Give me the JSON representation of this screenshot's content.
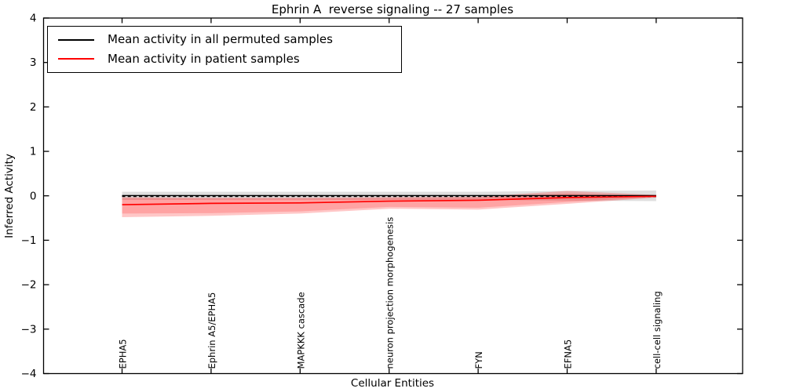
{
  "figure": {
    "title": "Ephrin A  reverse signaling -- 27 samples",
    "xlabel": "Cellular Entities",
    "ylabel": "Inferred Activity"
  },
  "legend": {
    "items": [
      {
        "label": "Mean activity in all permuted samples",
        "color": "#000000"
      },
      {
        "label": "Mean activity in patient samples",
        "color": "#ff0000"
      }
    ]
  },
  "chart_data": {
    "type": "line",
    "title": "Ephrin A  reverse signaling -- 27 samples",
    "xlabel": "Cellular Entities",
    "ylabel": "Inferred Activity",
    "categories": [
      "EPHA5",
      "Ephrin A5/EPHA5",
      "MAPKKK cascade",
      "neuron projection morphogenesis",
      "FYN",
      "EFNA5",
      "cell-cell signaling"
    ],
    "x_tick_rotation": 90,
    "ylim": [
      -4,
      4
    ],
    "yticks": [
      4,
      3,
      2,
      1,
      0,
      -1,
      -2,
      -3,
      -4
    ],
    "grid": false,
    "legend_position": "upper left",
    "zero_line": {
      "style": "dashed",
      "value": 0,
      "color": "#000000"
    },
    "series": [
      {
        "name": "Mean activity in all permuted samples",
        "color": "#000000",
        "line_width": 1.4,
        "values": [
          0,
          0,
          0,
          0,
          0,
          0,
          0
        ],
        "band": {
          "color": "#808080",
          "opacity": 0.25,
          "top": [
            0.09,
            0.09,
            0.09,
            0.09,
            0.09,
            0.11,
            0.12
          ],
          "bottom": [
            -0.09,
            -0.09,
            -0.09,
            -0.09,
            -0.09,
            -0.11,
            -0.12
          ]
        }
      },
      {
        "name": "Mean activity in patient samples",
        "color": "#ff0000",
        "line_width": 1.7,
        "values": [
          -0.2,
          -0.17,
          -0.16,
          -0.12,
          -0.1,
          -0.04,
          -0.01
        ],
        "band": {
          "color": "#ff0000",
          "opacity": 0.22,
          "top": [
            -0.03,
            -0.04,
            -0.04,
            -0.03,
            -0.02,
            0.11,
            0.02
          ],
          "bottom": [
            -0.48,
            -0.45,
            -0.4,
            -0.29,
            -0.31,
            -0.18,
            -0.04
          ]
        },
        "band_inner": {
          "color": "#ff0000",
          "opacity": 0.18,
          "top": [
            -0.05,
            -0.06,
            -0.06,
            -0.05,
            -0.04,
            0.05,
            0.0
          ],
          "bottom": [
            -0.4,
            -0.39,
            -0.35,
            -0.25,
            -0.27,
            -0.14,
            -0.03
          ]
        }
      }
    ]
  }
}
